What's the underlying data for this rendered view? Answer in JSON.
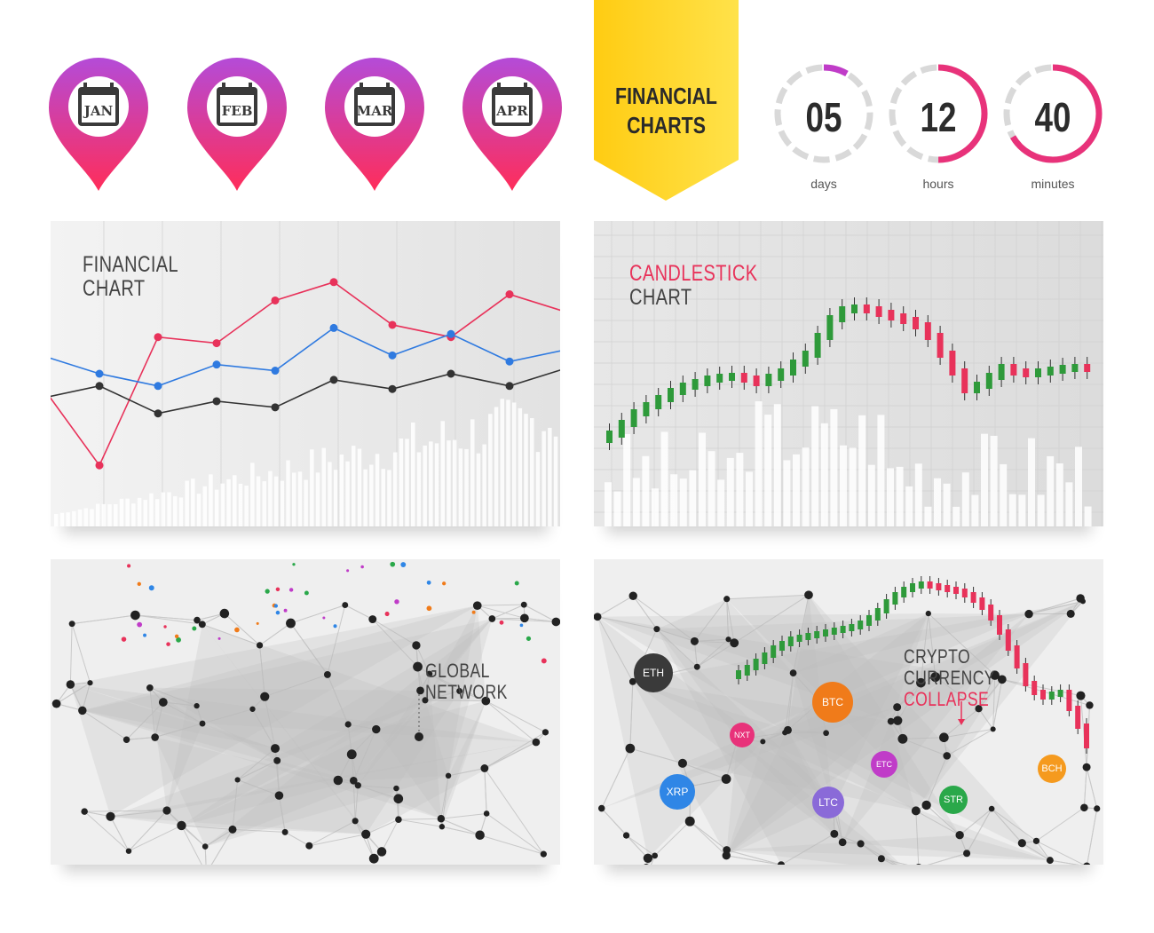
{
  "pins": [
    {
      "month": "JAN",
      "icon": "calendar-icon"
    },
    {
      "month": "FEB",
      "icon": "calendar-icon"
    },
    {
      "month": "MAR",
      "icon": "calendar-icon"
    },
    {
      "month": "APR",
      "icon": "calendar-icon"
    }
  ],
  "banner": {
    "line1": "FINANCIAL",
    "line2": "CHARTS"
  },
  "timer": [
    {
      "value": "05",
      "caption": "days"
    },
    {
      "value": "12",
      "caption": "hours"
    },
    {
      "value": "40",
      "caption": "minutes"
    }
  ],
  "panels": {
    "financial": {
      "line1": "FINANCIAL",
      "line2": "CHART"
    },
    "candlestick": {
      "line1": "CANDLESTICK",
      "line2": "CHART"
    },
    "network": {
      "line1": "GLOBAL",
      "line2": "NETWORK"
    },
    "crypto": {
      "line1": "CRYPTO",
      "line2": "CURRENCY",
      "line3": "COLLAPSE"
    }
  },
  "coins": [
    {
      "name": "ETH",
      "color": "#3a3a3a"
    },
    {
      "name": "BTC",
      "color": "#f07b1a"
    },
    {
      "name": "NXT",
      "color": "#e8327a"
    },
    {
      "name": "ETC",
      "color": "#c03cc8"
    },
    {
      "name": "XRP",
      "color": "#2f86e6"
    },
    {
      "name": "LTC",
      "color": "#8a6ad8"
    },
    {
      "name": "STR",
      "color": "#2aa84a"
    },
    {
      "name": "BCH",
      "color": "#f59a1e"
    }
  ],
  "colors": {
    "pin_top": "#b44bd8",
    "pin_bottom": "#ff2d5a",
    "banner": "#ffd21f",
    "up": "#2e9a3a",
    "down": "#e8325a",
    "line_red": "#e8325a",
    "line_blue": "#2f7ae0",
    "line_black": "#333333"
  },
  "chart_data": [
    {
      "type": "line",
      "title": "FINANCIAL CHART",
      "series": [
        {
          "values": [
            0.46,
            0.2,
            0.62,
            0.6,
            0.74,
            0.8,
            0.66,
            0.62,
            0.76,
            0.7
          ]
        },
        {
          "values": [
            0.56,
            0.5,
            0.46,
            0.53,
            0.51,
            0.65,
            0.56,
            0.63,
            0.54,
            0.58
          ]
        },
        {
          "values": [
            0.42,
            0.46,
            0.37,
            0.41,
            0.39,
            0.48,
            0.45,
            0.5,
            0.46,
            0.52
          ]
        }
      ]
    },
    {
      "type": "bar",
      "title": "CANDLESTICK CHART"
    }
  ]
}
